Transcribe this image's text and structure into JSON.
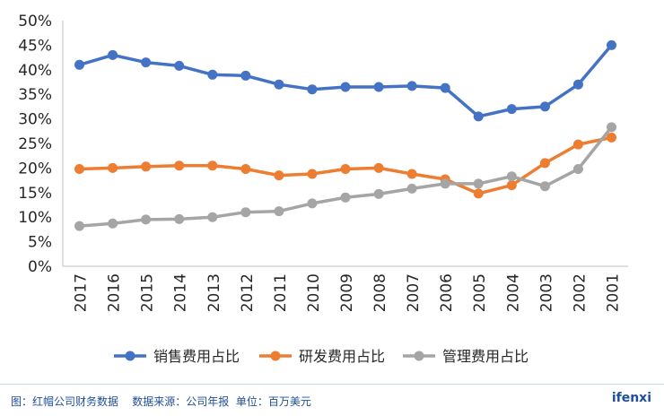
{
  "chart_data": {
    "type": "line",
    "categories": [
      "2017",
      "2016",
      "2015",
      "2014",
      "2013",
      "2012",
      "2011",
      "2010",
      "2009",
      "2008",
      "2007",
      "2006",
      "2005",
      "2004",
      "2003",
      "2002",
      "2001"
    ],
    "series": [
      {
        "name": "销售费用占比",
        "color": "#4472c4",
        "values": [
          41,
          43,
          41.5,
          40.8,
          39,
          38.8,
          37,
          36,
          36.5,
          36.5,
          36.7,
          36.3,
          30.5,
          32,
          32.5,
          37,
          45
        ]
      },
      {
        "name": "研发费用占比",
        "color": "#ed7d31",
        "values": [
          19.8,
          20,
          20.3,
          20.5,
          20.5,
          19.8,
          18.5,
          18.8,
          19.8,
          20,
          18.8,
          17.7,
          14.8,
          16.5,
          21,
          24.8,
          26.2
        ]
      },
      {
        "name": "管理费用占比",
        "color": "#a5a5a5",
        "values": [
          8.2,
          8.7,
          9.5,
          9.6,
          10,
          11,
          11.2,
          12.8,
          14,
          14.7,
          15.8,
          16.8,
          16.8,
          18.3,
          16.3,
          19.8,
          28.3
        ]
      }
    ],
    "yticks": [
      "0%",
      "5%",
      "10%",
      "15%",
      "20%",
      "25%",
      "30%",
      "35%",
      "40%",
      "45%",
      "50%"
    ],
    "ylim": [
      0,
      50
    ],
    "grid": false,
    "legend_position": "bottom"
  },
  "footer": {
    "caption": "图：红帽公司财务数据    数据来源：公司年报  单位：百万美元",
    "brand": "ifenxi"
  }
}
